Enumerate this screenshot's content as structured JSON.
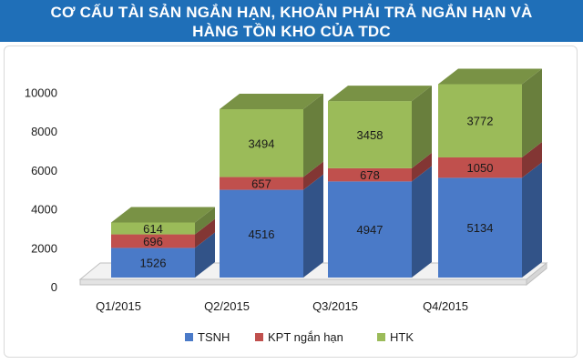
{
  "header": {
    "title_line1": "CƠ CẤU TÀI SẢN NGẮN HẠN, KHOẢN PHẢI TRẢ NGẮN HẠN VÀ",
    "title_line2": "HÀNG TỒN KHO CỦA TDC"
  },
  "chart_data": {
    "type": "bar",
    "stacked": true,
    "three_d": true,
    "title": "CƠ CẤU TÀI SẢN NGẮN HẠN, KHOẢN PHẢI TRẢ NGẮN HẠN VÀ HÀNG TỒN KHO CỦA TDC",
    "categories": [
      "Q1/2015",
      "Q2/2015",
      "Q3/2015",
      "Q4/2015"
    ],
    "series": [
      {
        "name": "TSNH",
        "color": "#4a7ac8",
        "values": [
          1526,
          4516,
          4947,
          5134
        ]
      },
      {
        "name": "KPT ngắn hạn",
        "color": "#c0504d",
        "values": [
          696,
          657,
          678,
          1050
        ]
      },
      {
        "name": "HTK",
        "color": "#9bbb59",
        "values": [
          614,
          3494,
          3458,
          3772
        ]
      }
    ],
    "y_ticks": [
      "0",
      "2000",
      "4000",
      "6000",
      "8000",
      "10000"
    ],
    "ylim": [
      0,
      10000
    ],
    "grid": false,
    "legend_position": "bottom"
  }
}
